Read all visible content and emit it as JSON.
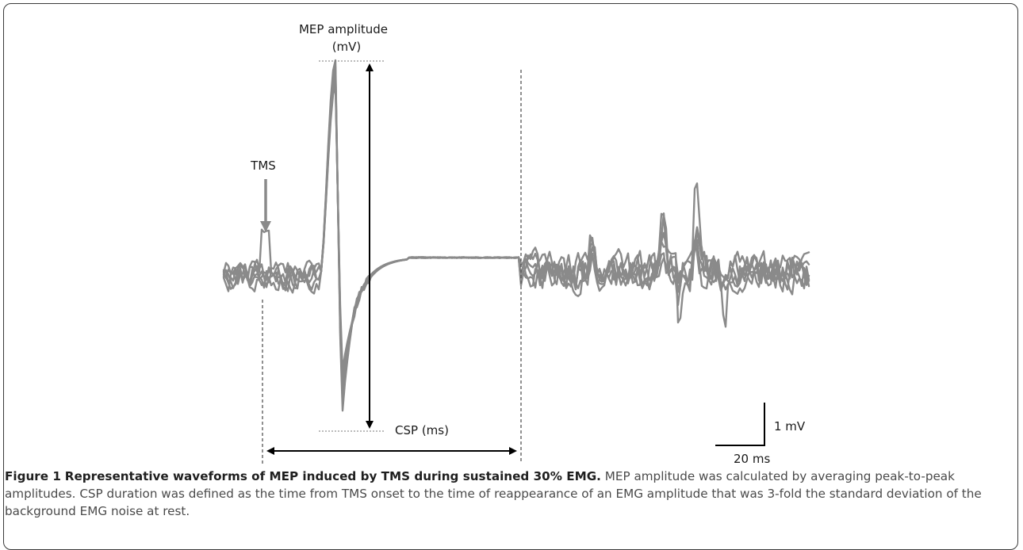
{
  "figure": {
    "labels": {
      "mep_amplitude_line1": "MEP amplitude",
      "mep_amplitude_line2": "(mV)",
      "tms": "TMS",
      "csp": "CSP (ms)",
      "scale_voltage": "1 mV",
      "scale_time": "20 ms"
    },
    "colors": {
      "waveform": "#8a8a8a",
      "annotation": "#000000",
      "tms_arrow": "#8a8a8a",
      "guide_dotted": "#888888"
    }
  },
  "caption": {
    "number": "Figure 1",
    "title": "Representative waveforms of MEP induced by TMS during sustained 30% EMG.",
    "body": "MEP amplitude was calculated by averaging peak-to-peak amplitudes. CSP duration was defined as the time from TMS onset to the time of reappearance of an EMG amplitude that was 3-fold the standard deviation of the background EMG noise at rest."
  }
}
